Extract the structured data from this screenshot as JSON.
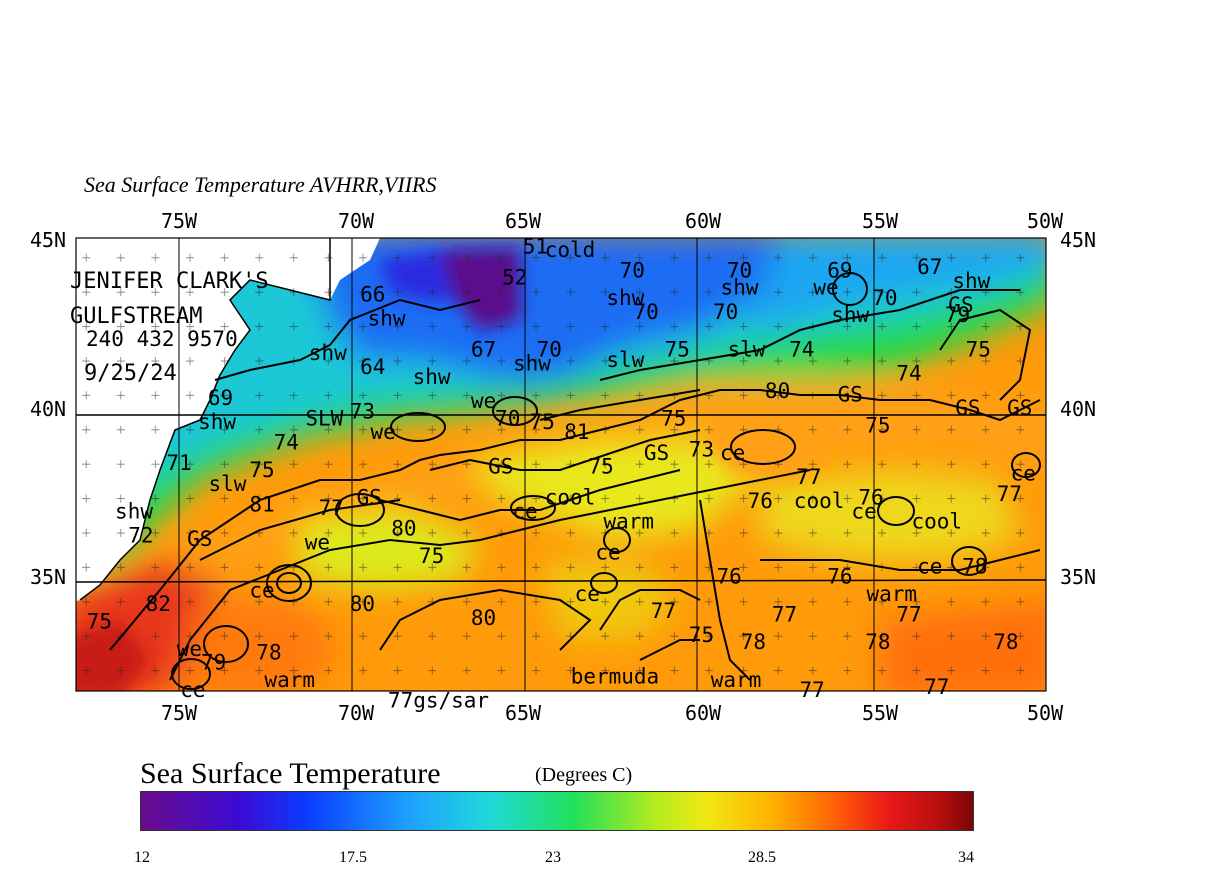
{
  "title": "Sea Surface Temperature  AVHRR,VIIRS",
  "credit": {
    "line1": "JENIFER CLARK'S",
    "line2": "GULFSTREAM",
    "phone": "240 432 9570",
    "date": "9/25/24"
  },
  "axes": {
    "lon_top": [
      "75W",
      "70W",
      "65W",
      "60W",
      "55W",
      "50W"
    ],
    "lon_bottom": [
      "75W",
      "70W",
      "65W",
      "60W",
      "55W",
      "50W"
    ],
    "lat_left": [
      "45N",
      "40N",
      "35N"
    ],
    "lat_right": [
      "45N",
      "40N",
      "35N"
    ]
  },
  "annotations": [
    {
      "t": "51",
      "x": -64.7,
      "y": 44.9
    },
    {
      "t": "cold",
      "x": -63.7,
      "y": 44.8
    },
    {
      "t": "52",
      "x": -65.3,
      "y": 44.0
    },
    {
      "t": "70",
      "x": -61.9,
      "y": 44.2
    },
    {
      "t": "70",
      "x": -58.8,
      "y": 44.2
    },
    {
      "t": "69",
      "x": -55.9,
      "y": 44.2
    },
    {
      "t": "67",
      "x": -53.3,
      "y": 44.3
    },
    {
      "t": "shw",
      "x": -52.1,
      "y": 43.9
    },
    {
      "t": "we",
      "x": -56.3,
      "y": 43.7
    },
    {
      "t": "shw",
      "x": -62.1,
      "y": 43.4
    },
    {
      "t": "shw",
      "x": -58.8,
      "y": 43.7
    },
    {
      "t": "70",
      "x": -54.6,
      "y": 43.4
    },
    {
      "t": "GS",
      "x": -52.4,
      "y": 43.2
    },
    {
      "t": "70",
      "x": -61.5,
      "y": 43.0
    },
    {
      "t": "70",
      "x": -59.2,
      "y": 43.0
    },
    {
      "t": "shw",
      "x": -55.6,
      "y": 42.9
    },
    {
      "t": "79",
      "x": -52.5,
      "y": 42.9
    },
    {
      "t": "66",
      "x": -69.4,
      "y": 43.5
    },
    {
      "t": "shw",
      "x": -69.0,
      "y": 42.8
    },
    {
      "t": "75",
      "x": -51.9,
      "y": 41.9
    },
    {
      "t": "shw",
      "x": -70.7,
      "y": 41.8
    },
    {
      "t": "67",
      "x": -66.2,
      "y": 41.9
    },
    {
      "t": "70",
      "x": -64.3,
      "y": 41.9
    },
    {
      "t": "shw",
      "x": -64.8,
      "y": 41.5
    },
    {
      "t": "slw",
      "x": -62.1,
      "y": 41.6
    },
    {
      "t": "75",
      "x": -60.6,
      "y": 41.9
    },
    {
      "t": "slw",
      "x": -58.6,
      "y": 41.9
    },
    {
      "t": "74",
      "x": -57.0,
      "y": 41.9
    },
    {
      "t": "64",
      "x": -69.4,
      "y": 41.4
    },
    {
      "t": "shw",
      "x": -67.7,
      "y": 41.1
    },
    {
      "t": "74",
      "x": -53.9,
      "y": 41.2
    },
    {
      "t": "69",
      "x": -73.8,
      "y": 40.5
    },
    {
      "t": "80",
      "x": -57.7,
      "y": 40.7
    },
    {
      "t": "GS",
      "x": -55.6,
      "y": 40.6
    },
    {
      "t": "GS",
      "x": -52.2,
      "y": 40.2
    },
    {
      "t": "GS",
      "x": -50.7,
      "y": 40.2
    },
    {
      "t": "73",
      "x": -69.7,
      "y": 40.1
    },
    {
      "t": "we",
      "x": -66.2,
      "y": 40.4
    },
    {
      "t": "shw",
      "x": -73.9,
      "y": 39.8
    },
    {
      "t": "SLW",
      "x": -70.8,
      "y": 39.9
    },
    {
      "t": "70",
      "x": -65.5,
      "y": 39.9
    },
    {
      "t": "75",
      "x": -64.5,
      "y": 39.8
    },
    {
      "t": "81",
      "x": -63.5,
      "y": 39.5
    },
    {
      "t": "75",
      "x": -60.7,
      "y": 39.9
    },
    {
      "t": "75",
      "x": -54.8,
      "y": 39.7
    },
    {
      "t": "we",
      "x": -69.1,
      "y": 39.5
    },
    {
      "t": "74",
      "x": -71.9,
      "y": 39.2
    },
    {
      "t": "GS",
      "x": -61.2,
      "y": 38.9
    },
    {
      "t": "73",
      "x": -59.9,
      "y": 39.0
    },
    {
      "t": "ce",
      "x": -59.0,
      "y": 38.9
    },
    {
      "t": "71",
      "x": -75.0,
      "y": 38.6
    },
    {
      "t": "75",
      "x": -72.6,
      "y": 38.4
    },
    {
      "t": "GS",
      "x": -65.7,
      "y": 38.5
    },
    {
      "t": "75",
      "x": -62.8,
      "y": 38.5
    },
    {
      "t": "77",
      "x": -56.8,
      "y": 38.2
    },
    {
      "t": "ce",
      "x": -50.6,
      "y": 38.3
    },
    {
      "t": "slw",
      "x": -73.6,
      "y": 38.0
    },
    {
      "t": "cool",
      "x": -63.7,
      "y": 37.6
    },
    {
      "t": "76",
      "x": -58.2,
      "y": 37.5
    },
    {
      "t": "cool",
      "x": -56.5,
      "y": 37.5
    },
    {
      "t": "76",
      "x": -55.0,
      "y": 37.6
    },
    {
      "t": "77",
      "x": -51.0,
      "y": 37.7
    },
    {
      "t": "81",
      "x": -72.6,
      "y": 37.4
    },
    {
      "t": "GS",
      "x": -69.5,
      "y": 37.6
    },
    {
      "t": "77",
      "x": -70.6,
      "y": 37.3
    },
    {
      "t": "shw",
      "x": -76.3,
      "y": 37.2
    },
    {
      "t": "ce",
      "x": -65.0,
      "y": 37.2
    },
    {
      "t": "ce",
      "x": -55.2,
      "y": 37.2
    },
    {
      "t": "cool",
      "x": -53.1,
      "y": 36.9
    },
    {
      "t": "warm",
      "x": -62.0,
      "y": 36.9
    },
    {
      "t": "80",
      "x": -68.5,
      "y": 36.7
    },
    {
      "t": "72",
      "x": -76.1,
      "y": 36.5
    },
    {
      "t": "GS",
      "x": -74.4,
      "y": 36.4
    },
    {
      "t": "we",
      "x": -71.0,
      "y": 36.3
    },
    {
      "t": "ce",
      "x": -62.6,
      "y": 36.0
    },
    {
      "t": "75",
      "x": -67.7,
      "y": 35.9
    },
    {
      "t": "ce",
      "x": -53.3,
      "y": 35.6
    },
    {
      "t": "78",
      "x": -52.0,
      "y": 35.6
    },
    {
      "t": "76",
      "x": -59.1,
      "y": 35.3
    },
    {
      "t": "76",
      "x": -55.9,
      "y": 35.3
    },
    {
      "t": "ce",
      "x": -72.6,
      "y": 34.9
    },
    {
      "t": "warm",
      "x": -54.4,
      "y": 34.8
    },
    {
      "t": "ce",
      "x": -63.2,
      "y": 34.8
    },
    {
      "t": "82",
      "x": -75.6,
      "y": 34.5
    },
    {
      "t": "80",
      "x": -69.7,
      "y": 34.5
    },
    {
      "t": "80",
      "x": -66.2,
      "y": 34.1
    },
    {
      "t": "77",
      "x": -61.0,
      "y": 34.3
    },
    {
      "t": "77",
      "x": -57.5,
      "y": 34.2
    },
    {
      "t": "77",
      "x": -53.9,
      "y": 34.2
    },
    {
      "t": "75",
      "x": -77.3,
      "y": 34.0
    },
    {
      "t": "78",
      "x": -72.4,
      "y": 33.1
    },
    {
      "t": "75",
      "x": -59.9,
      "y": 33.6
    },
    {
      "t": "78",
      "x": -58.4,
      "y": 33.4
    },
    {
      "t": "78",
      "x": -54.8,
      "y": 33.4
    },
    {
      "t": "78",
      "x": -51.1,
      "y": 33.4
    },
    {
      "t": "we",
      "x": -74.7,
      "y": 33.2
    },
    {
      "t": "79",
      "x": -74.0,
      "y": 32.8
    },
    {
      "t": "warm",
      "x": -71.8,
      "y": 32.3
    },
    {
      "t": "bermuda",
      "x": -62.4,
      "y": 32.4
    },
    {
      "t": "warm",
      "x": -58.9,
      "y": 32.3
    },
    {
      "t": "77",
      "x": -56.7,
      "y": 32.0
    },
    {
      "t": "77",
      "x": -53.1,
      "y": 32.1
    },
    {
      "t": "ce",
      "x": -74.6,
      "y": 32.0
    },
    {
      "t": "77gs/sar",
      "x": -67.5,
      "y": 31.7
    }
  ],
  "colorbar": {
    "title": "Sea Surface Temperature",
    "units": "(Degrees C)",
    "ticks": [
      "12",
      "17.5",
      "23",
      "28.5",
      "34"
    ]
  },
  "colors": {
    "cold": "#5a0a8c",
    "blue": "#1a4ef0",
    "cyan": "#22c8e8",
    "green": "#22d84a",
    "yellow": "#eeea14",
    "orange": "#ffa40a",
    "red": "#ec3a14",
    "land": "#ffffff",
    "line": "#000000"
  }
}
